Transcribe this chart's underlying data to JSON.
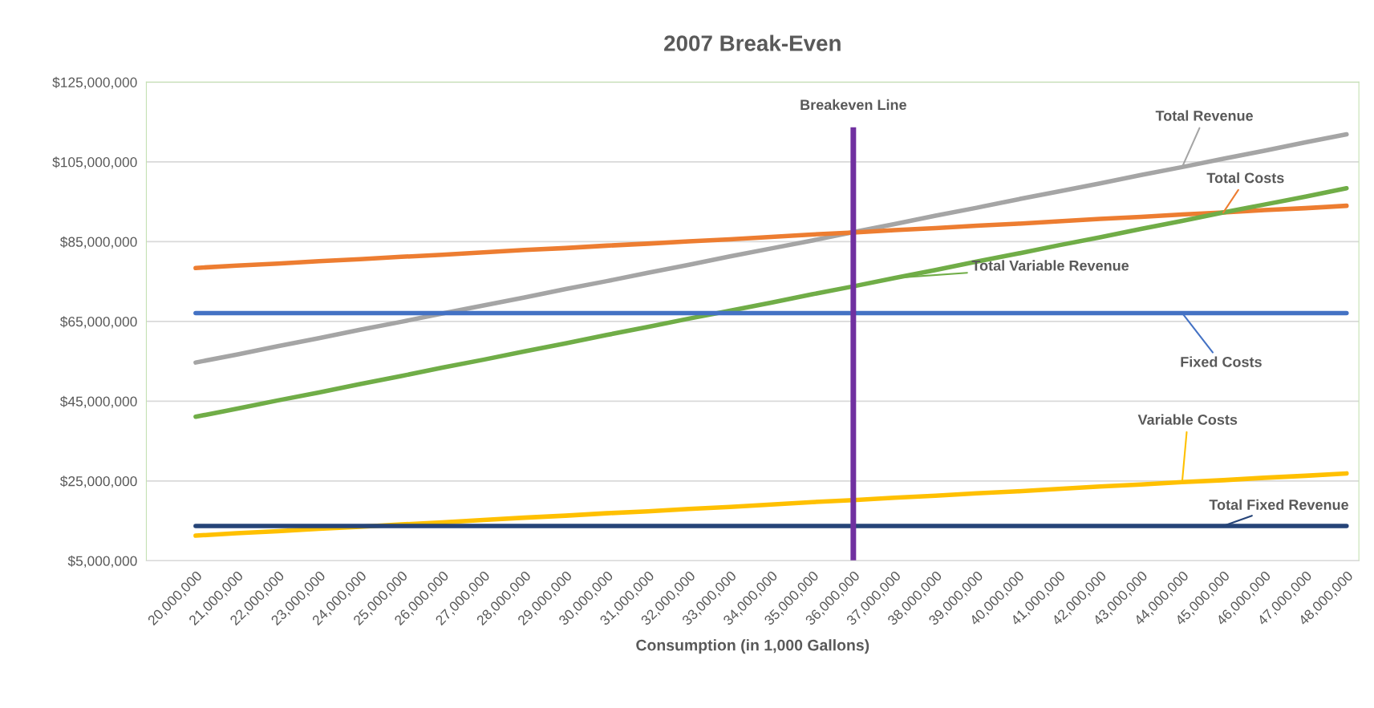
{
  "chart_data": {
    "type": "line",
    "title": "2007 Break-Even",
    "xlabel": "Consumption (in 1,000 Gallons)",
    "categories": [
      "20,000,000",
      "21,000,000",
      "22,000,000",
      "23,000,000",
      "24,000,000",
      "25,000,000",
      "26,000,000",
      "27,000,000",
      "28,000,000",
      "29,000,000",
      "30,000,000",
      "31,000,000",
      "32,000,000",
      "33,000,000",
      "34,000,000",
      "35,000,000",
      "36,000,000",
      "37,000,000",
      "38,000,000",
      "39,000,000",
      "40,000,000",
      "41,000,000",
      "42,000,000",
      "43,000,000",
      "44,000,000",
      "45,000,000",
      "46,000,000",
      "47,000,000",
      "48,000,000"
    ],
    "series": [
      {
        "name": "Total Revenue",
        "color": "#a5a5a5",
        "values": [
          54700000,
          56700000,
          58800000,
          60800000,
          62900000,
          64900000,
          67000000,
          69000000,
          71000000,
          73100000,
          75100000,
          77200000,
          79200000,
          81300000,
          83300000,
          85300000,
          87400000,
          89400000,
          91500000,
          93500000,
          95600000,
          97600000,
          99600000,
          101700000,
          103700000,
          105800000,
          107800000,
          109900000,
          111900000
        ]
      },
      {
        "name": "Total Costs",
        "color": "#ed7d31",
        "values": [
          78400000,
          79000000,
          79500000,
          80100000,
          80600000,
          81200000,
          81700000,
          82300000,
          82900000,
          83400000,
          84000000,
          84500000,
          85100000,
          85600000,
          86200000,
          86800000,
          87300000,
          87900000,
          88400000,
          89000000,
          89500000,
          90100000,
          90700000,
          91200000,
          91800000,
          92300000,
          92900000,
          93400000,
          94000000
        ]
      },
      {
        "name": "Total Variable Revenue",
        "color": "#70ad47",
        "values": [
          41100000,
          43100000,
          45200000,
          47200000,
          49300000,
          51300000,
          53400000,
          55400000,
          57500000,
          59500000,
          61600000,
          63600000,
          65700000,
          67700000,
          69700000,
          71800000,
          73800000,
          75900000,
          77900000,
          80000000,
          82000000,
          84100000,
          86100000,
          88200000,
          90200000,
          92300000,
          94300000,
          96300000,
          98400000
        ]
      },
      {
        "name": "Fixed Costs",
        "color": "#4472c4",
        "values": [
          67100000,
          67100000,
          67100000,
          67100000,
          67100000,
          67100000,
          67100000,
          67100000,
          67100000,
          67100000,
          67100000,
          67100000,
          67100000,
          67100000,
          67100000,
          67100000,
          67100000,
          67100000,
          67100000,
          67100000,
          67100000,
          67100000,
          67100000,
          67100000,
          67100000,
          67100000,
          67100000,
          67100000,
          67100000
        ]
      },
      {
        "name": "Variable Costs",
        "color": "#ffc000",
        "values": [
          11300000,
          11900000,
          12400000,
          13000000,
          13500000,
          14100000,
          14600000,
          15200000,
          15800000,
          16300000,
          16900000,
          17400000,
          18000000,
          18500000,
          19100000,
          19700000,
          20200000,
          20800000,
          21300000,
          21900000,
          22400000,
          23000000,
          23600000,
          24100000,
          24700000,
          25200000,
          25800000,
          26300000,
          26900000
        ]
      },
      {
        "name": "Total Fixed Revenue",
        "color": "#264478",
        "values": [
          13700000,
          13700000,
          13700000,
          13700000,
          13700000,
          13700000,
          13700000,
          13700000,
          13700000,
          13700000,
          13700000,
          13700000,
          13700000,
          13700000,
          13700000,
          13700000,
          13700000,
          13700000,
          13700000,
          13700000,
          13700000,
          13700000,
          13700000,
          13700000,
          13700000,
          13700000,
          13700000,
          13700000,
          13700000
        ]
      }
    ],
    "ref_lines": [
      {
        "axis": "x",
        "value": "36,000,000",
        "label": "Breakeven Line",
        "color": "#7030a0",
        "line_style": "solid"
      }
    ],
    "ylim": [
      5000000,
      125000000
    ],
    "yticks": [
      {
        "value": 5000000,
        "label": "$5,000,000"
      },
      {
        "value": 25000000,
        "label": "$25,000,000"
      },
      {
        "value": 45000000,
        "label": "$45,000,000"
      },
      {
        "value": 65000000,
        "label": "$65,000,000"
      },
      {
        "value": 85000000,
        "label": "$85,000,000"
      },
      {
        "value": 105000000,
        "label": "$105,000,000"
      },
      {
        "value": 125000000,
        "label": "$125,000,000"
      }
    ],
    "grid": "y",
    "legend": false,
    "marker": "none",
    "line_style": "solid"
  }
}
